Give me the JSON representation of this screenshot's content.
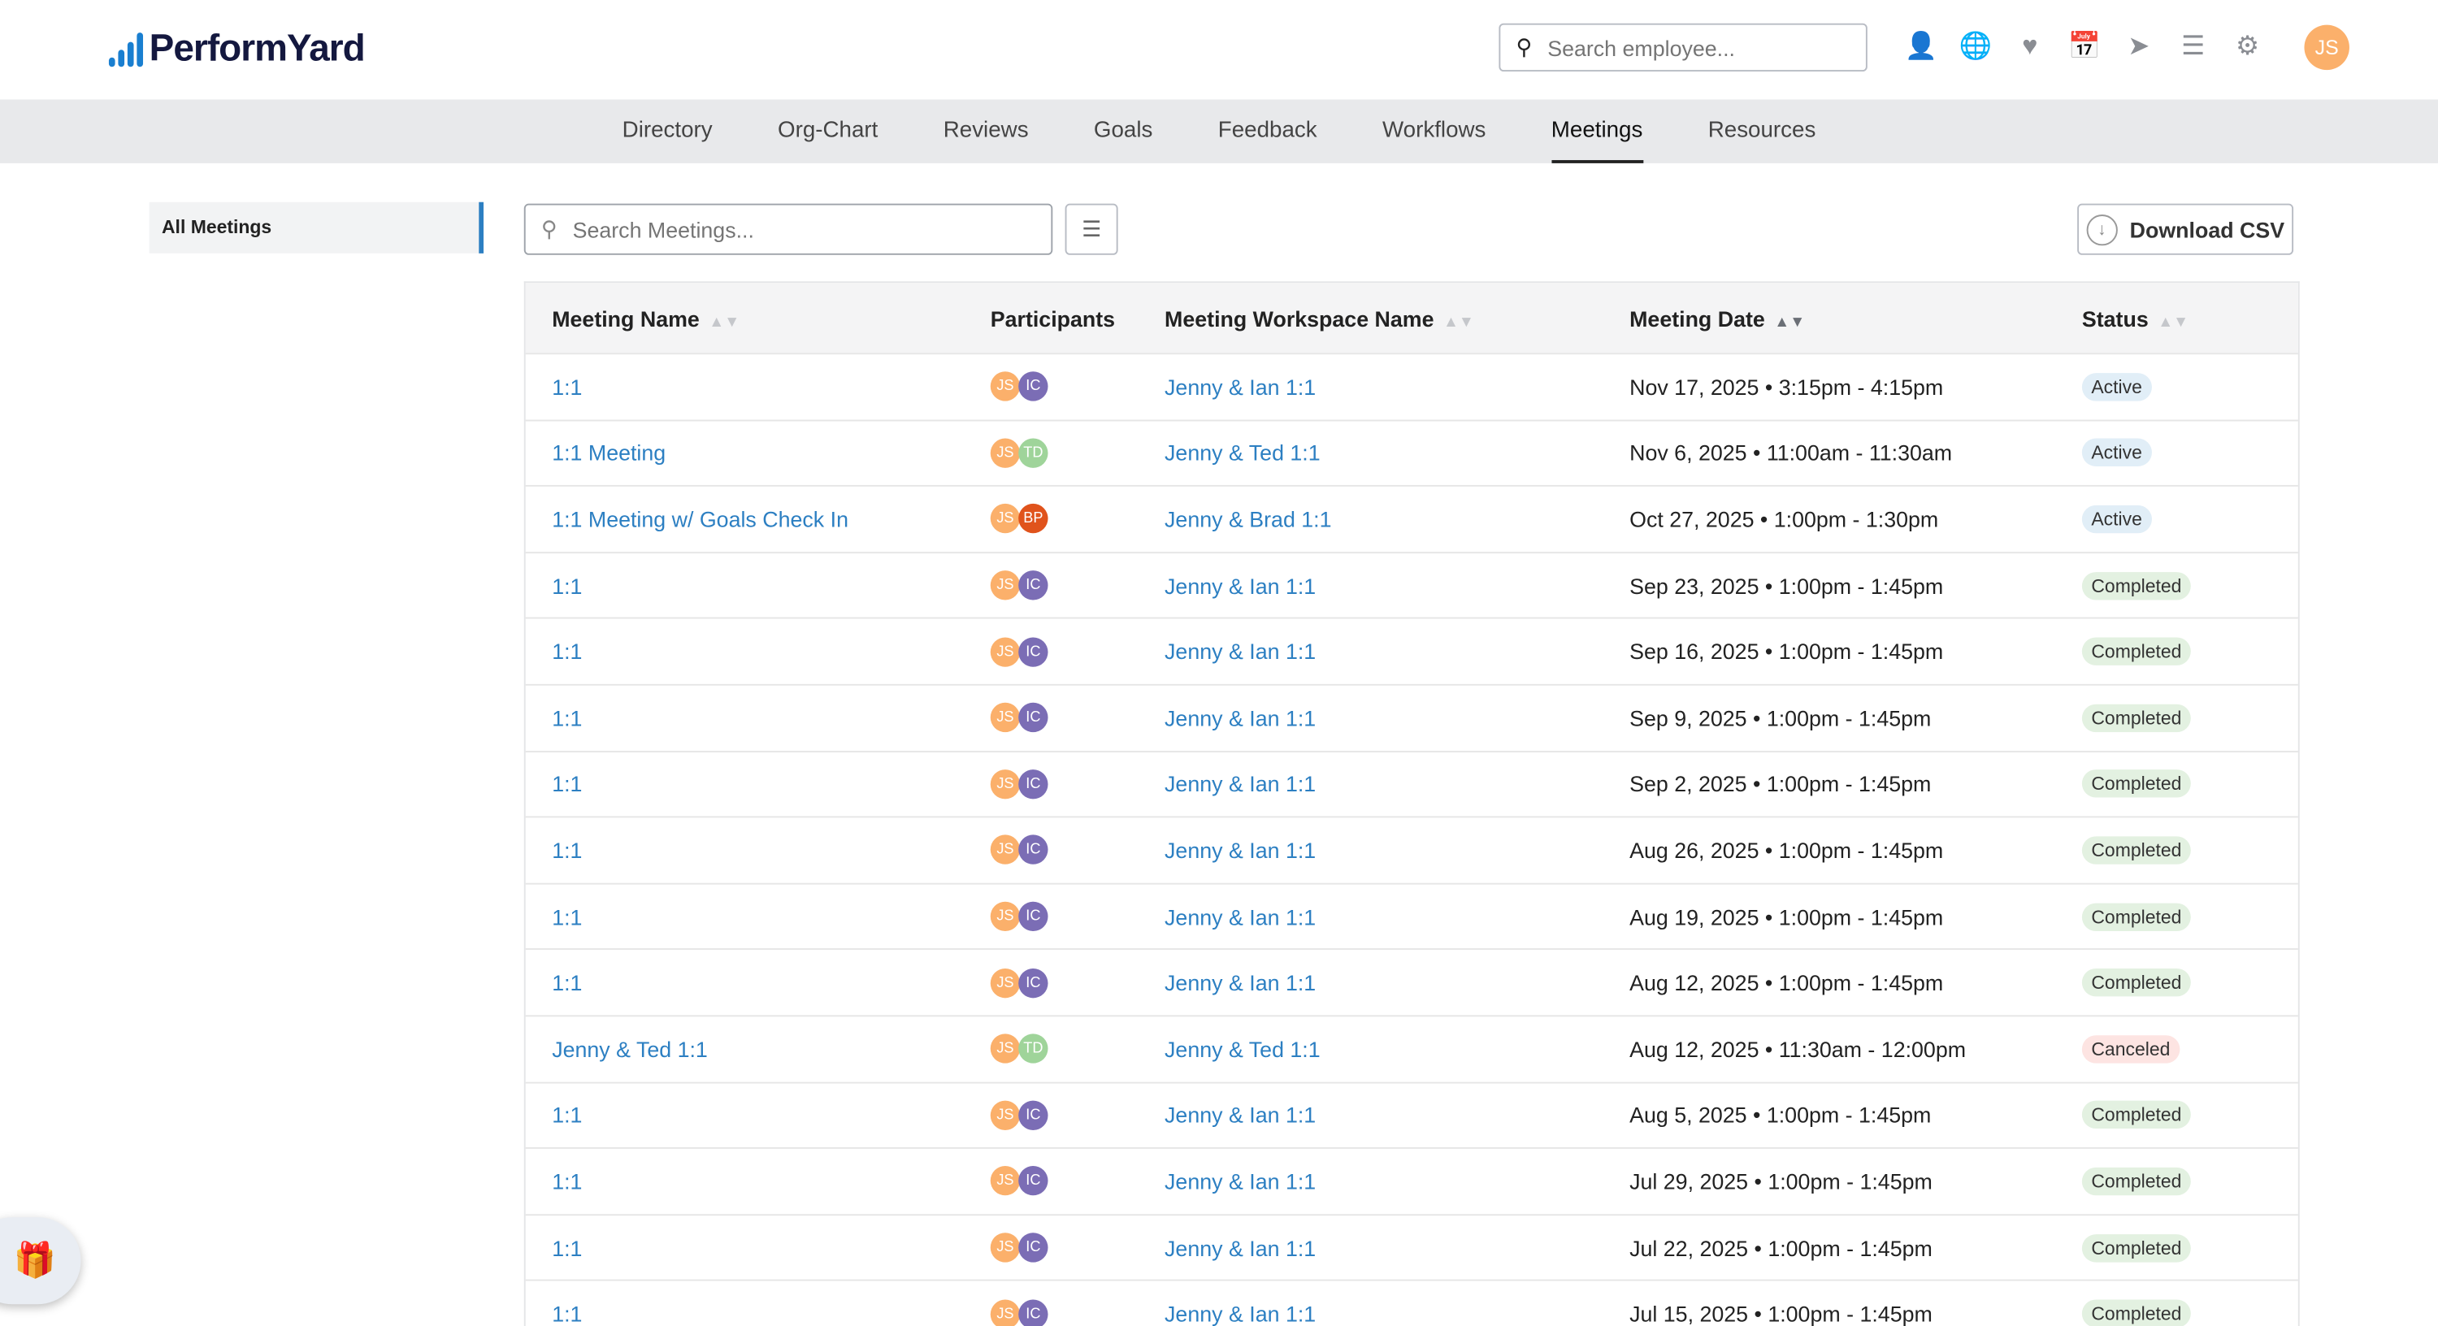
{
  "brand": {
    "name": "PerformYard"
  },
  "header": {
    "search_placeholder": "Search employee...",
    "icons": [
      "person-icon",
      "globe-icon",
      "heart-pulse-icon",
      "calendar-check-icon",
      "send-icon",
      "list-icon",
      "gears-icon"
    ],
    "user_initials": "JS"
  },
  "nav": {
    "items": [
      "Directory",
      "Org-Chart",
      "Reviews",
      "Goals",
      "Feedback",
      "Workflows",
      "Meetings",
      "Resources"
    ],
    "active": "Meetings"
  },
  "sidebar": {
    "items": [
      {
        "label": "All Meetings",
        "active": true
      }
    ]
  },
  "toolbar": {
    "search_placeholder": "Search Meetings...",
    "download_label": "Download CSV"
  },
  "colors": {
    "link": "#2c7fc2",
    "active_bg": "#e1eef7",
    "completed_bg": "#e3f1e1",
    "canceled_bg": "#fde4e2",
    "JS": "#fbb06b",
    "IC": "#7b6db5",
    "TD": "#9fd49a",
    "BP": "#e0531c"
  },
  "table": {
    "columns": [
      "Meeting Name",
      "Participants",
      "Meeting Workspace Name",
      "Meeting Date",
      "Status"
    ],
    "sorted_column": "Meeting Date",
    "rows": [
      {
        "name": "1:1",
        "participants": [
          "JS",
          "IC"
        ],
        "workspace": "Jenny & Ian 1:1",
        "date": "Nov 17, 2025 • 3:15pm - 4:15pm",
        "status": "Active"
      },
      {
        "name": "1:1 Meeting",
        "participants": [
          "JS",
          "TD"
        ],
        "workspace": "Jenny & Ted 1:1",
        "date": "Nov 6, 2025 • 11:00am - 11:30am",
        "status": "Active"
      },
      {
        "name": "1:1 Meeting w/ Goals Check In",
        "participants": [
          "JS",
          "BP"
        ],
        "workspace": "Jenny & Brad 1:1",
        "date": "Oct 27, 2025 • 1:00pm - 1:30pm",
        "status": "Active"
      },
      {
        "name": "1:1",
        "participants": [
          "JS",
          "IC"
        ],
        "workspace": "Jenny & Ian 1:1",
        "date": "Sep 23, 2025 • 1:00pm - 1:45pm",
        "status": "Completed"
      },
      {
        "name": "1:1",
        "participants": [
          "JS",
          "IC"
        ],
        "workspace": "Jenny & Ian 1:1",
        "date": "Sep 16, 2025 • 1:00pm - 1:45pm",
        "status": "Completed"
      },
      {
        "name": "1:1",
        "participants": [
          "JS",
          "IC"
        ],
        "workspace": "Jenny & Ian 1:1",
        "date": "Sep 9, 2025 • 1:00pm - 1:45pm",
        "status": "Completed"
      },
      {
        "name": "1:1",
        "participants": [
          "JS",
          "IC"
        ],
        "workspace": "Jenny & Ian 1:1",
        "date": "Sep 2, 2025 • 1:00pm - 1:45pm",
        "status": "Completed"
      },
      {
        "name": "1:1",
        "participants": [
          "JS",
          "IC"
        ],
        "workspace": "Jenny & Ian 1:1",
        "date": "Aug 26, 2025 • 1:00pm - 1:45pm",
        "status": "Completed"
      },
      {
        "name": "1:1",
        "participants": [
          "JS",
          "IC"
        ],
        "workspace": "Jenny & Ian 1:1",
        "date": "Aug 19, 2025 • 1:00pm - 1:45pm",
        "status": "Completed"
      },
      {
        "name": "1:1",
        "participants": [
          "JS",
          "IC"
        ],
        "workspace": "Jenny & Ian 1:1",
        "date": "Aug 12, 2025 • 1:00pm - 1:45pm",
        "status": "Completed"
      },
      {
        "name": "Jenny & Ted 1:1",
        "participants": [
          "JS",
          "TD"
        ],
        "workspace": "Jenny & Ted 1:1",
        "date": "Aug 12, 2025 • 11:30am - 12:00pm",
        "status": "Canceled"
      },
      {
        "name": "1:1",
        "participants": [
          "JS",
          "IC"
        ],
        "workspace": "Jenny & Ian 1:1",
        "date": "Aug 5, 2025 • 1:00pm - 1:45pm",
        "status": "Completed"
      },
      {
        "name": "1:1",
        "participants": [
          "JS",
          "IC"
        ],
        "workspace": "Jenny & Ian 1:1",
        "date": "Jul 29, 2025 • 1:00pm - 1:45pm",
        "status": "Completed"
      },
      {
        "name": "1:1",
        "participants": [
          "JS",
          "IC"
        ],
        "workspace": "Jenny & Ian 1:1",
        "date": "Jul 22, 2025 • 1:00pm - 1:45pm",
        "status": "Completed"
      },
      {
        "name": "1:1",
        "participants": [
          "JS",
          "IC"
        ],
        "workspace": "Jenny & Ian 1:1",
        "date": "Jul 15, 2025 • 1:00pm - 1:45pm",
        "status": "Completed"
      }
    ]
  }
}
